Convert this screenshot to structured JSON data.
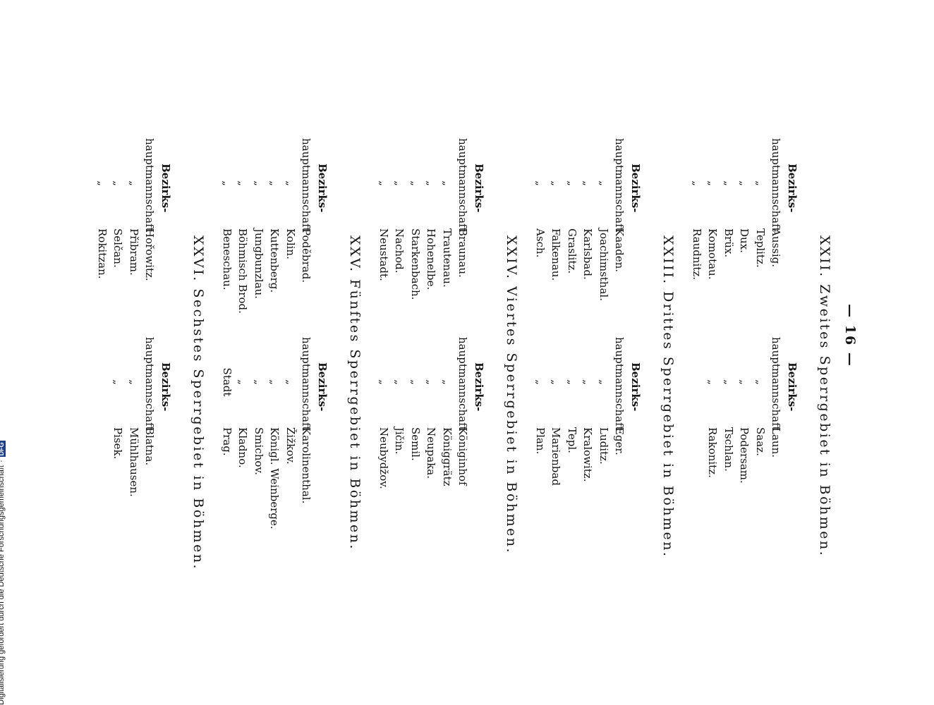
{
  "page": {
    "number": "— 16 —"
  },
  "labels": {
    "bezirks": "Bezirks-",
    "hauptmannschaft": "hauptmannschaft",
    "ditto": "„",
    "stadt": "Stadt"
  },
  "sections": [
    {
      "title": "XXII. Zweites Sperrgebiet in Böhmen.",
      "left": [
        "Aussig.",
        "Teplitz.",
        "Dux.",
        "Brüx.",
        "Komotau.",
        "Raudnitz."
      ],
      "right": [
        "Laun.",
        "Saaz.",
        "Podersam.",
        "Tschlan.",
        "Rakonitz."
      ]
    },
    {
      "title": "XXIII. Drittes Sperrgebiet in Böhmen.",
      "left": [
        "Kaaden.",
        "Joachimsthal.",
        "Karlsbad.",
        "Graslitz.",
        "Falkenau.",
        "Asch."
      ],
      "right": [
        "Eger.",
        "Luditz.",
        "Kralowitz.",
        "Tepl.",
        "Marienbad",
        "Plan."
      ]
    },
    {
      "title": "XXIV. Viertes Sperrgebiet in Böhmen.",
      "left": [
        "Braunau.",
        "Trautenau.",
        "Hohenelbe.",
        "Starkenbach.",
        "Nachod.",
        "Neustadt."
      ],
      "right": [
        "Königinhof",
        "Königgrätz",
        "Neupaka.",
        "Semil.",
        "Jičin.",
        "Neubydžov."
      ]
    },
    {
      "title": "XXV. Fünftes Sperrgebiet in Böhmen.",
      "left": [
        "Poděbrad.",
        "Kolin.",
        "Kuttenberg.",
        "Jungbunzlau.",
        "Böhmisch Brod.",
        "Beneschau."
      ],
      "right": [
        "Karolinenthal.",
        "Žižkov.",
        "Königl. Weinberge.",
        "Smichov.",
        "Kladno.",
        "Prag."
      ]
    },
    {
      "title": "XXVI. Sechstes Sperrgebiet in Böhmen.",
      "left": [
        "Hořowitz.",
        "Přibram.",
        "Selčan.",
        "Rokitzan."
      ],
      "right": [
        "Blatna.",
        "Mühlhausen.",
        "Pisek."
      ]
    }
  ],
  "footer": {
    "text": "Digitalisierung gefördert durch die Deutsche Forschungsgemeinschaft",
    "logo": "DFG"
  }
}
